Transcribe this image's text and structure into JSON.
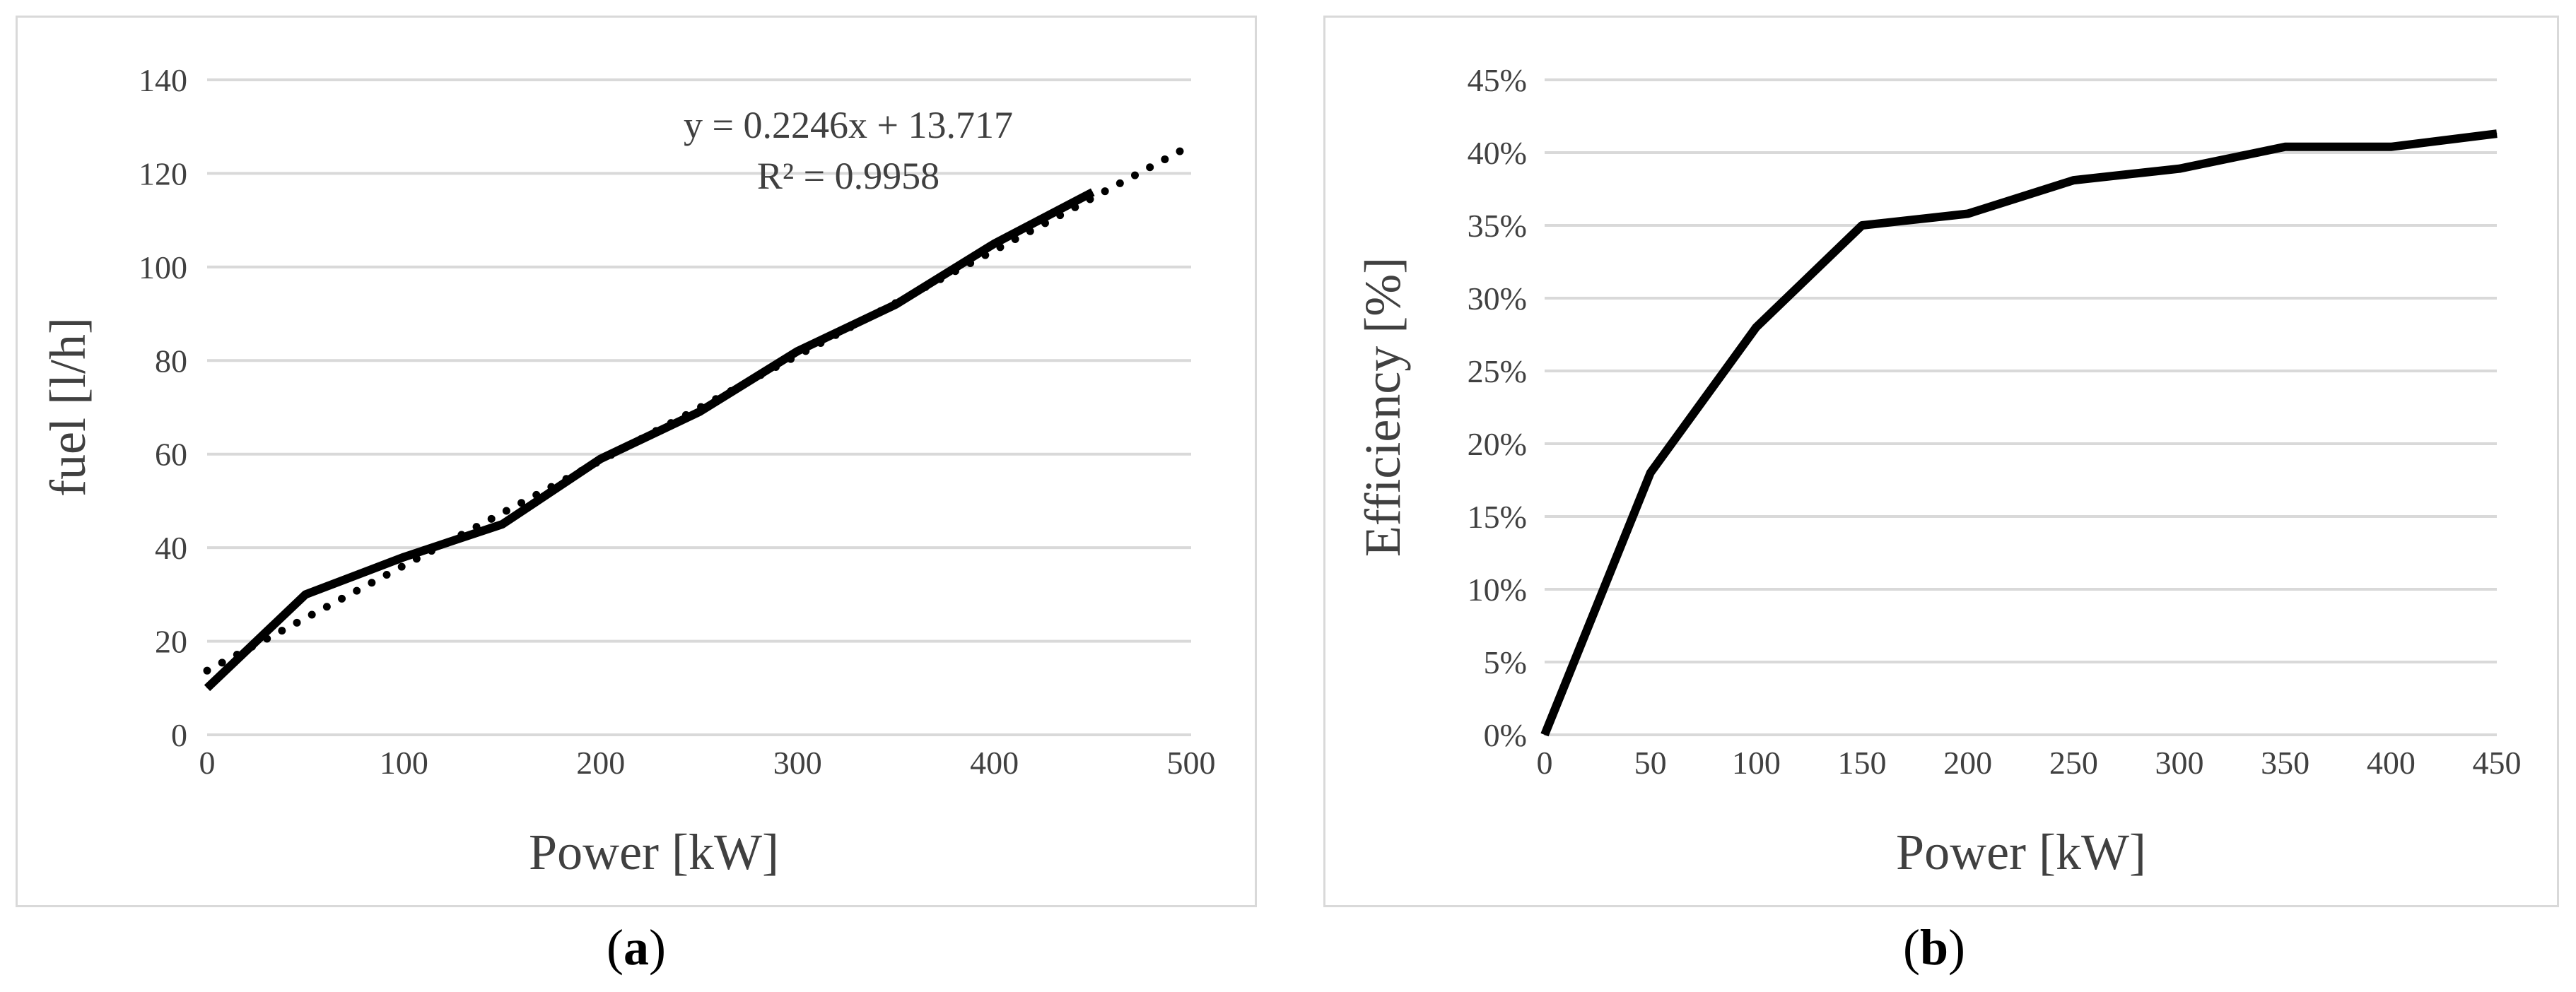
{
  "colors": {
    "grid": "#d9d9d9",
    "line": "#000000",
    "text": "#404040",
    "border": "#d9d9d9"
  },
  "chart_data": [
    {
      "panel": "a",
      "type": "line",
      "xlabel": "Power [kW]",
      "ylabel": "fuel [l/h]",
      "xlim": [
        0,
        500
      ],
      "ylim": [
        0,
        140
      ],
      "x_ticks": [
        "0",
        "100",
        "200",
        "300",
        "400",
        "500"
      ],
      "y_ticks": [
        "0",
        "20",
        "40",
        "60",
        "80",
        "100",
        "120",
        "140"
      ],
      "grid": "horizontal",
      "series": [
        {
          "x": [
            0,
            50,
            100,
            150,
            200,
            250,
            300,
            350,
            400,
            450
          ],
          "y": [
            10,
            30,
            38,
            45,
            59,
            69,
            82,
            92,
            105,
            116
          ]
        }
      ],
      "trendline": {
        "style": "dotted",
        "slope": 0.2246,
        "intercept": 13.717,
        "x_range": [
          0,
          495
        ]
      },
      "annotations": [
        "y = 0.2246x + 13.717",
        "R² = 0.9958"
      ]
    },
    {
      "panel": "b",
      "type": "line",
      "xlabel": "Power [kW]",
      "ylabel": "Efficiency [%]",
      "xlim": [
        0,
        450
      ],
      "ylim": [
        0,
        0.45
      ],
      "x_ticks": [
        "0",
        "50",
        "100",
        "150",
        "200",
        "250",
        "300",
        "350",
        "400",
        "450"
      ],
      "y_ticks": [
        "0%",
        "5%",
        "10%",
        "15%",
        "20%",
        "25%",
        "30%",
        "35%",
        "40%",
        "45%"
      ],
      "grid": "horizontal",
      "series": [
        {
          "x": [
            0,
            50,
            100,
            150,
            200,
            250,
            300,
            350,
            400,
            450
          ],
          "y": [
            0.0,
            0.18,
            0.28,
            0.35,
            0.358,
            0.381,
            0.389,
            0.404,
            0.404,
            0.413
          ]
        }
      ]
    }
  ],
  "captions": {
    "a": {
      "open": "(",
      "letter": "a",
      "close": ")"
    },
    "b": {
      "open": "(",
      "letter": "b",
      "close": ")"
    }
  }
}
